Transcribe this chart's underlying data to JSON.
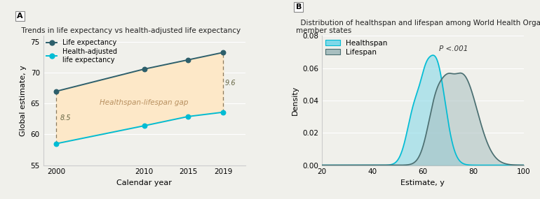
{
  "panel_A": {
    "title": "Trends in life expectancy vs health-adjusted life expectancy",
    "label": "A",
    "years": [
      2000,
      2010,
      2015,
      2019
    ],
    "life_expectancy": [
      67.0,
      70.6,
      72.1,
      73.3
    ],
    "hale": [
      58.5,
      61.4,
      62.9,
      63.6
    ],
    "gap_2000": "8.5",
    "gap_2019": "9.6",
    "gap_label": "Healthspan-lifespan gap",
    "fill_color": "#fde8c8",
    "le_color": "#2d5f6b",
    "hale_color": "#00bcd4",
    "dashed_color": "#8b7a5e",
    "xlabel": "Calendar year",
    "ylabel": "Global estimate, y",
    "ylim": [
      55,
      76
    ],
    "yticks": [
      55,
      60,
      65,
      70,
      75
    ],
    "legend_le": "Life expectancy",
    "legend_hale": "Health-adjusted\nlife expectancy"
  },
  "panel_B": {
    "title": "Distribution of healthspan and lifespan among World Health Organization\nmember states",
    "label": "B",
    "xlabel": "Estimate, y",
    "ylabel": "Density",
    "xlim": [
      20,
      100
    ],
    "ylim": [
      0,
      0.08
    ],
    "yticks": [
      0,
      0.02,
      0.04,
      0.06,
      0.08
    ],
    "xticks": [
      20,
      40,
      60,
      80,
      100
    ],
    "healthspan_color_fill": "#7fd8e8",
    "healthspan_color_line": "#00bcd4",
    "lifespan_color_fill": "#a8bfc0",
    "lifespan_color_line": "#4a6e70",
    "pvalue_text": "P <.001",
    "legend_h": "Healthspan",
    "legend_l": "Lifespan"
  },
  "bg_color": "#f0f0eb",
  "grid_color": "#ffffff"
}
